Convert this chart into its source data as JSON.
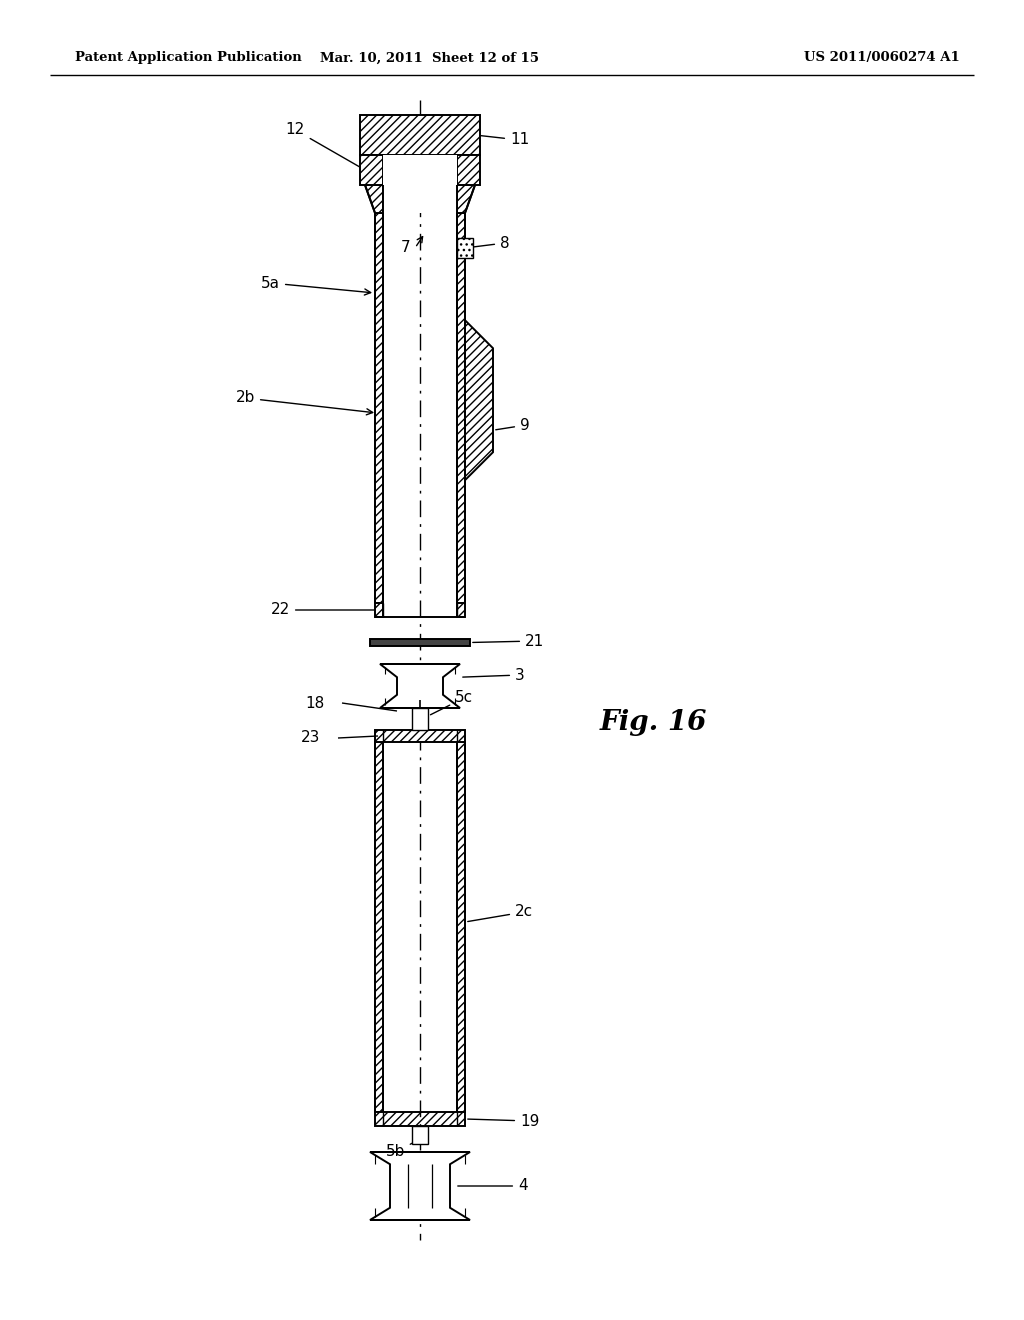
{
  "bg_color": "#ffffff",
  "line_color": "#000000",
  "header_left": "Patent Application Publication",
  "header_mid": "Mar. 10, 2011  Sheet 12 of 15",
  "header_right": "US 2011/0060274 A1",
  "fig_label": "Fig. 16"
}
